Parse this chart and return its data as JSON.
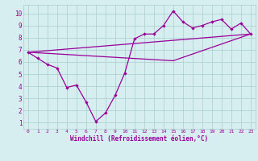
{
  "background_color": "#d6eef0",
  "grid_color": "#aacccc",
  "line_color": "#990099",
  "xlabel": "Windchill (Refroidissement éolien,°C)",
  "xlim": [
    -0.5,
    23.5
  ],
  "ylim": [
    0.5,
    10.7
  ],
  "xticks": [
    0,
    1,
    2,
    3,
    4,
    5,
    6,
    7,
    8,
    9,
    10,
    11,
    12,
    13,
    14,
    15,
    16,
    17,
    18,
    19,
    20,
    21,
    22,
    23
  ],
  "yticks": [
    1,
    2,
    3,
    4,
    5,
    6,
    7,
    8,
    9,
    10
  ],
  "line1_x": [
    0,
    1,
    2,
    3,
    4,
    5,
    6,
    7,
    8,
    9,
    10,
    11,
    12,
    13,
    14,
    15,
    16,
    17,
    18,
    19,
    20,
    21,
    22,
    23
  ],
  "line1_y": [
    6.8,
    6.3,
    5.8,
    5.5,
    3.9,
    4.1,
    2.7,
    1.1,
    1.8,
    3.25,
    5.1,
    7.9,
    8.3,
    8.3,
    9.0,
    10.2,
    9.3,
    8.8,
    9.0,
    9.3,
    9.5,
    8.7,
    9.2,
    8.3
  ],
  "line2_x": [
    0,
    23
  ],
  "line2_y": [
    6.8,
    8.3
  ],
  "line3_x": [
    0,
    15,
    23
  ],
  "line3_y": [
    6.8,
    6.1,
    8.3
  ]
}
